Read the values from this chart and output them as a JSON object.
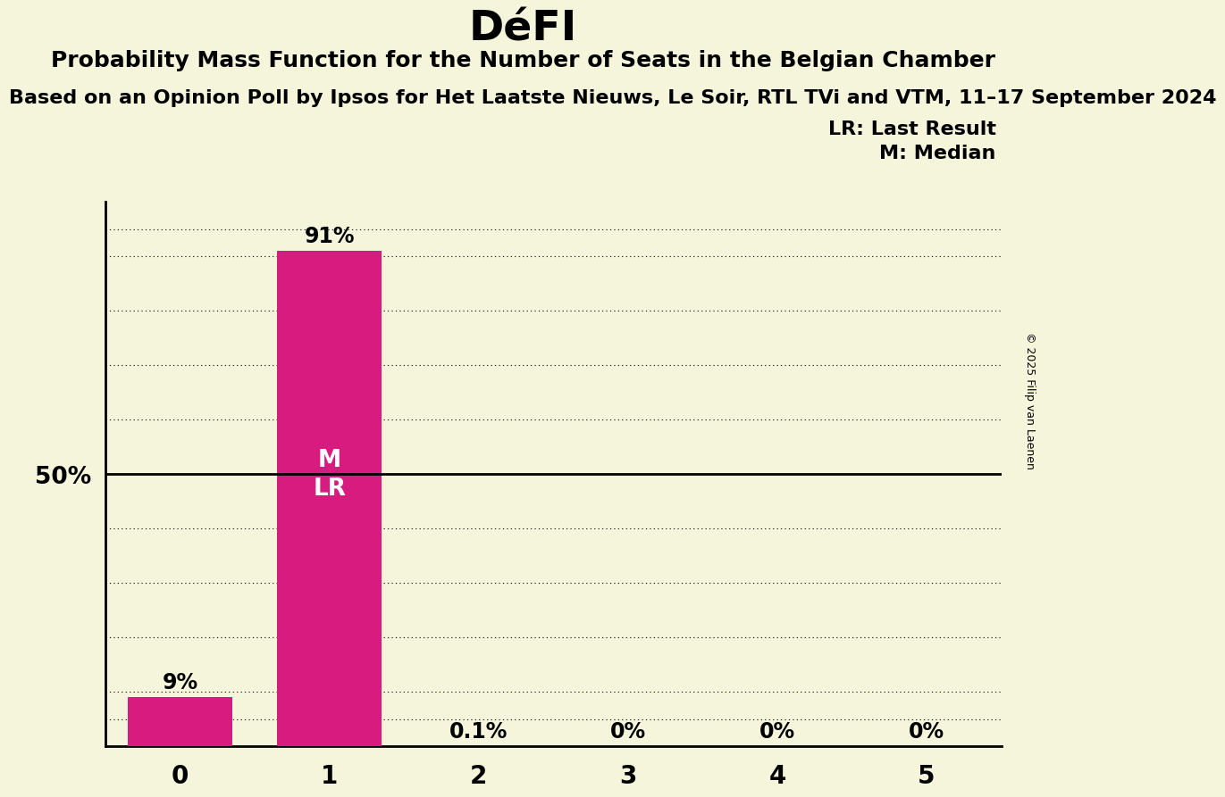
{
  "title": "DéFI",
  "subtitle1": "Probability Mass Function for the Number of Seats in the Belgian Chamber",
  "subtitle2": "Based on an Opinion Poll by Ipsos for Het Laatste Nieuws, Le Soir, RTL TVi and VTM, 11–17 September 2024",
  "subtitle2_display": "n an Opinion Poll by Ipsos for Het Laatste Nieuws, Le Soir, RTL TVi and VTM, 11–17 Septemb",
  "copyright": "© 2025 Filip van Laenen",
  "categories": [
    0,
    1,
    2,
    3,
    4,
    5
  ],
  "values": [
    0.09,
    0.91,
    0.001,
    0.0,
    0.0,
    0.0
  ],
  "bar_labels": [
    "9%",
    "91%",
    "0.1%",
    "0%",
    "0%",
    "0%"
  ],
  "bar_color": "#D81B7E",
  "background_color": "#F5F5DC",
  "hline_50_color": "#000000",
  "median_seat": 1,
  "last_result_seat": 1,
  "legend_lr": "LR: Last Result",
  "legend_m": "M: Median",
  "bar_width": 0.7,
  "title_fontsize": 34,
  "subtitle1_fontsize": 18,
  "subtitle2_fontsize": 16,
  "tick_label_fontsize": 20,
  "bar_label_fontsize": 17,
  "legend_fontsize": 16,
  "ytick_fontsize": 19,
  "ml_fontsize": 19
}
